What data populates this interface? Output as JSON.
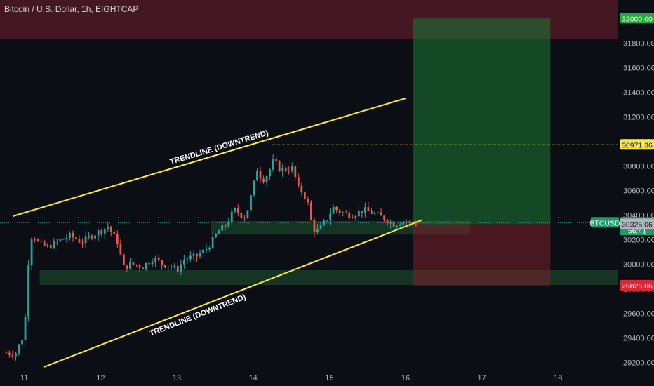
{
  "header": {
    "title": "Bitcoin / U.S. Dollar, 1h, EIGHTCAP"
  },
  "chart_data": {
    "type": "candlestick",
    "symbol": "BTCUSD",
    "y_axis": {
      "ticks": [
        29200,
        29400,
        29600,
        29800,
        30000,
        30200,
        30400,
        30600,
        30800,
        31000,
        31200,
        31400,
        31600,
        31800,
        32000
      ],
      "tick_labels": [
        "29200.00",
        "29400.00",
        "29600.00",
        "29800.00",
        "30000.00",
        "30200.00",
        "30400.00",
        "30600.00",
        "30800.00",
        "31000.00",
        "31200.00",
        "31400.00",
        "31600.00",
        "31800.00",
        "32000.00"
      ],
      "range": [
        29150,
        32150
      ]
    },
    "x_axis": {
      "ticks": [
        11,
        12,
        13,
        14,
        15,
        16,
        17,
        18
      ],
      "tick_labels": [
        "11",
        "12",
        "13",
        "14",
        "15",
        "16",
        "17",
        "18"
      ],
      "range": [
        10.68,
        18.78
      ]
    },
    "price_series": [
      [
        10.72,
        29280
      ],
      [
        10.88,
        29270
      ],
      [
        11.0,
        29440
      ],
      [
        11.05,
        30000
      ],
      [
        11.1,
        30250
      ],
      [
        11.2,
        30160
      ],
      [
        11.3,
        30140
      ],
      [
        11.45,
        30190
      ],
      [
        11.6,
        30230
      ],
      [
        11.75,
        30180
      ],
      [
        11.9,
        30240
      ],
      [
        12.0,
        30270
      ],
      [
        12.1,
        30310
      ],
      [
        12.15,
        30250
      ],
      [
        12.22,
        30180
      ],
      [
        12.3,
        29970
      ],
      [
        12.4,
        30000
      ],
      [
        12.55,
        29980
      ],
      [
        12.7,
        30050
      ],
      [
        12.8,
        30000
      ],
      [
        12.9,
        29990
      ],
      [
        13.0,
        29950
      ],
      [
        13.1,
        30040
      ],
      [
        13.25,
        30060
      ],
      [
        13.4,
        30130
      ],
      [
        13.55,
        30270
      ],
      [
        13.65,
        30320
      ],
      [
        13.75,
        30440
      ],
      [
        13.9,
        30380
      ],
      [
        14.0,
        30620
      ],
      [
        14.05,
        30780
      ],
      [
        14.12,
        30680
      ],
      [
        14.2,
        30740
      ],
      [
        14.28,
        30860
      ],
      [
        14.32,
        30780
      ],
      [
        14.42,
        30770
      ],
      [
        14.52,
        30780
      ],
      [
        14.6,
        30600
      ],
      [
        14.65,
        30590
      ],
      [
        14.72,
        30490
      ],
      [
        14.78,
        30290
      ],
      [
        14.85,
        30270
      ],
      [
        14.95,
        30350
      ],
      [
        15.05,
        30460
      ],
      [
        15.15,
        30420
      ],
      [
        15.3,
        30400
      ],
      [
        15.45,
        30440
      ],
      [
        15.6,
        30410
      ],
      [
        15.75,
        30360
      ],
      [
        15.85,
        30320
      ],
      [
        15.95,
        30350
      ],
      [
        16.05,
        30330
      ],
      [
        16.15,
        30337
      ]
    ],
    "trendlines": [
      {
        "label": "TRENDLINE (DOWNTREND)",
        "from": [
          10.85,
          30390
        ],
        "to": [
          16.0,
          31350
        ],
        "color": "#ffeb3b"
      },
      {
        "label": "TRENDLINE (DOWNTREND)",
        "from": [
          11.25,
          29160
        ],
        "to": [
          16.22,
          30360
        ],
        "color": "#ffeb3b"
      }
    ],
    "zones": [
      {
        "kind": "supply",
        "y_range": [
          31830,
          32150
        ],
        "x_range": [
          10.68,
          18.78
        ],
        "color": "#4a1a24"
      },
      {
        "kind": "demand",
        "y_range": [
          30240,
          30350
        ],
        "x_range": [
          13.45,
          16.85
        ],
        "color": "#173826"
      },
      {
        "kind": "demand",
        "y_range": [
          29830,
          29950
        ],
        "x_range": [
          11.2,
          18.78
        ],
        "color": "#173826"
      }
    ],
    "position": {
      "type": "long",
      "entry": 30325.06,
      "target": 32000.0,
      "stop": 29825.06,
      "x_range": [
        16.1,
        17.9
      ]
    },
    "levels": [
      {
        "value": 30971.36,
        "label": "30971.36",
        "style": "dashed",
        "color": "#f7e64b"
      }
    ],
    "price_tags": [
      {
        "value": 32000.0,
        "label": "32000.00",
        "bg": "#22ab3a",
        "fg": "#ffffff"
      },
      {
        "value": 30971.36,
        "label": "30971.36",
        "bg": "#f7e64b",
        "fg": "#131722"
      },
      {
        "value": 30337.0,
        "label": "30337.00",
        "bg": "#1b9c6a",
        "fg": "#ffffff",
        "sub": "56:41"
      },
      {
        "value": 30325.06,
        "label": "30325.06",
        "bg": "#b2b5be",
        "fg": "#131722"
      },
      {
        "value": 29825.06,
        "label": "29825.06",
        "bg": "#e02636",
        "fg": "#ffffff"
      }
    ],
    "symbol_tag": {
      "label": "BTCUSD",
      "value": 30337.0,
      "bg": "#1b9c6a",
      "fg": "#ffffff"
    },
    "current_price": 30337.0,
    "countdown": "56:41"
  },
  "colors": {
    "background": "#0c0e15",
    "up": "#26a69a",
    "down": "#ef5350",
    "trendline": "#ffeb3b"
  }
}
